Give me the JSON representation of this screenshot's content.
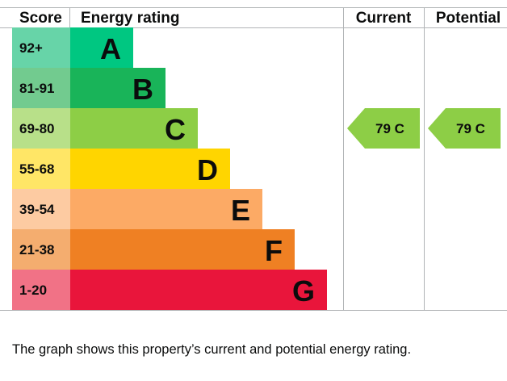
{
  "chart_data": {
    "type": "table",
    "headers": {
      "score": "Score",
      "rating": "Energy rating",
      "current": "Current",
      "potential": "Potential"
    },
    "bands": [
      {
        "score": "92+",
        "letter": "A",
        "color": "#00c781",
        "score_bg": "#67d4a8"
      },
      {
        "score": "81-91",
        "letter": "B",
        "color": "#19b459",
        "score_bg": "#72cb8f"
      },
      {
        "score": "69-80",
        "letter": "C",
        "color": "#8dce46",
        "score_bg": "#b8e089"
      },
      {
        "score": "55-68",
        "letter": "D",
        "color": "#ffd500",
        "score_bg": "#ffe666"
      },
      {
        "score": "39-54",
        "letter": "E",
        "color": "#fcaa65",
        "score_bg": "#fdcba2"
      },
      {
        "score": "21-38",
        "letter": "F",
        "color": "#ef8023",
        "score_bg": "#f4ad6f"
      },
      {
        "score": "1-20",
        "letter": "G",
        "color": "#e9153b",
        "score_bg": "#f17286"
      }
    ],
    "current": {
      "value": 79,
      "letter": "C",
      "label": "79 C",
      "color": "#8dce46"
    },
    "potential": {
      "value": 79,
      "letter": "C",
      "label": "79 C",
      "color": "#8dce46"
    }
  },
  "caption": "The graph shows this property’s current and potential energy rating."
}
